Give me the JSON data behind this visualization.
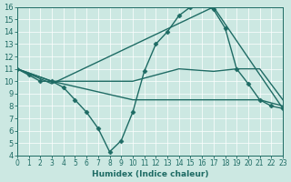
{
  "bg_color": "#cce8e2",
  "line_color": "#1e6b64",
  "xlim": [
    0,
    23
  ],
  "ylim": [
    4,
    16
  ],
  "xticks": [
    0,
    1,
    2,
    3,
    4,
    5,
    6,
    7,
    8,
    9,
    10,
    11,
    12,
    13,
    14,
    15,
    16,
    17,
    18,
    19,
    20,
    21,
    22,
    23
  ],
  "yticks": [
    4,
    5,
    6,
    7,
    8,
    9,
    10,
    11,
    12,
    13,
    14,
    15,
    16
  ],
  "xlabel": "Humidex (Indice chaleur)",
  "curves": [
    {
      "x": [
        0,
        1,
        2,
        3,
        4,
        5,
        6,
        7,
        8,
        9,
        10,
        11,
        12,
        13,
        14,
        15,
        16,
        17,
        18,
        19,
        20,
        21,
        22,
        23
      ],
      "y": [
        11,
        10.5,
        10,
        10,
        9.5,
        8.5,
        7.5,
        6.2,
        4.3,
        5.2,
        7.5,
        10.8,
        13,
        14,
        15.3,
        16,
        16.3,
        15.8,
        14.3,
        11,
        9.8,
        8.5,
        8.0,
        7.8
      ],
      "marker": "D",
      "markersize": 2.5,
      "linewidth": 1.0
    },
    {
      "comment": "upper flat line - from 0,11 -> 3,10 -> rises gently -> 19,11 -> 21,11 -> 23,8.5",
      "x": [
        0,
        3,
        10,
        14,
        17,
        19,
        21,
        23
      ],
      "y": [
        11,
        10,
        10,
        11,
        10.8,
        11,
        11,
        8.5
      ],
      "marker": null,
      "linewidth": 1.0
    },
    {
      "comment": "lower flat line - from 0,11 -> 3,10 -> flat 8.5 -> 23,8",
      "x": [
        0,
        3,
        10,
        17,
        21,
        23
      ],
      "y": [
        11,
        10,
        8.5,
        8.5,
        8.5,
        8.0
      ],
      "marker": null,
      "linewidth": 1.0
    },
    {
      "comment": "diagonal line from 0,11 -> 3,9.8 -> 17,16 -> 23,7.8",
      "x": [
        0,
        3,
        17,
        23
      ],
      "y": [
        11,
        9.8,
        16.0,
        7.8
      ],
      "marker": null,
      "linewidth": 1.0
    }
  ]
}
